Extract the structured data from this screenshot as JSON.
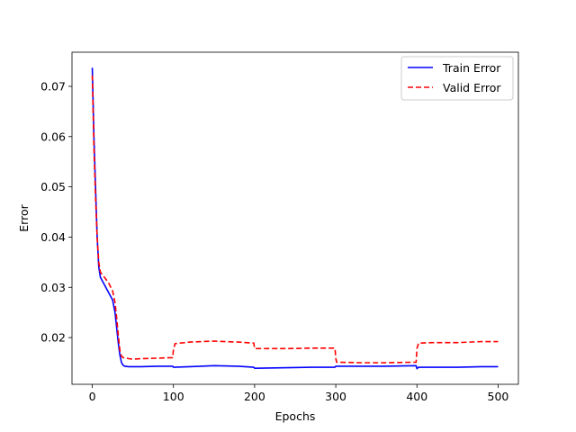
{
  "chart_data": {
    "type": "line",
    "xlabel": "Epochs",
    "ylabel": "Error",
    "xlim": [
      -25,
      525
    ],
    "ylim": [
      0.0107,
      0.0768
    ],
    "xticks": [
      0,
      100,
      200,
      300,
      400,
      500
    ],
    "xtick_labels": [
      "0",
      "100",
      "200",
      "300",
      "400",
      "500"
    ],
    "yticks": [
      0.02,
      0.03,
      0.04,
      0.05,
      0.06,
      0.07
    ],
    "ytick_labels": [
      "0.02",
      "0.03",
      "0.04",
      "0.05",
      "0.06",
      "0.07"
    ],
    "grid": false,
    "legend_position": "upper right",
    "series": [
      {
        "name": "Train Error",
        "color": "#0000ff",
        "style": "solid",
        "x": [
          0,
          2,
          4,
          6,
          8,
          10,
          15,
          20,
          25,
          28,
          30,
          32,
          34,
          36,
          38,
          40,
          45,
          50,
          60,
          80,
          99,
          100,
          120,
          150,
          180,
          199,
          200,
          240,
          270,
          299,
          300,
          330,
          360,
          399,
          400,
          402,
          420,
          450,
          480,
          500
        ],
        "y": [
          0.0737,
          0.06,
          0.05,
          0.04,
          0.034,
          0.032,
          0.0305,
          0.029,
          0.0275,
          0.025,
          0.022,
          0.019,
          0.0165,
          0.015,
          0.0145,
          0.0143,
          0.0142,
          0.0142,
          0.0142,
          0.0143,
          0.0143,
          0.0141,
          0.0142,
          0.0144,
          0.0143,
          0.0141,
          0.0139,
          0.014,
          0.0141,
          0.0141,
          0.0143,
          0.0143,
          0.0143,
          0.0144,
          0.0138,
          0.0141,
          0.0141,
          0.0141,
          0.0142,
          0.0142
        ]
      },
      {
        "name": "Valid Error",
        "color": "#ff0000",
        "style": "dashed",
        "x": [
          0,
          2,
          4,
          6,
          8,
          10,
          15,
          20,
          25,
          28,
          30,
          32,
          34,
          36,
          38,
          40,
          45,
          50,
          60,
          80,
          99,
          100,
          102,
          120,
          150,
          180,
          199,
          200,
          240,
          270,
          299,
          300,
          301,
          330,
          360,
          399,
          400,
          402,
          420,
          450,
          480,
          500
        ],
        "y": [
          0.0722,
          0.058,
          0.048,
          0.04,
          0.035,
          0.033,
          0.032,
          0.0309,
          0.0293,
          0.027,
          0.024,
          0.0205,
          0.0175,
          0.0163,
          0.016,
          0.016,
          0.0158,
          0.0157,
          0.0158,
          0.0159,
          0.016,
          0.0176,
          0.0188,
          0.0191,
          0.0193,
          0.0191,
          0.0189,
          0.0178,
          0.0178,
          0.0179,
          0.0179,
          0.0159,
          0.0151,
          0.015,
          0.015,
          0.0151,
          0.0178,
          0.0189,
          0.019,
          0.019,
          0.0192,
          0.0192
        ]
      }
    ]
  }
}
